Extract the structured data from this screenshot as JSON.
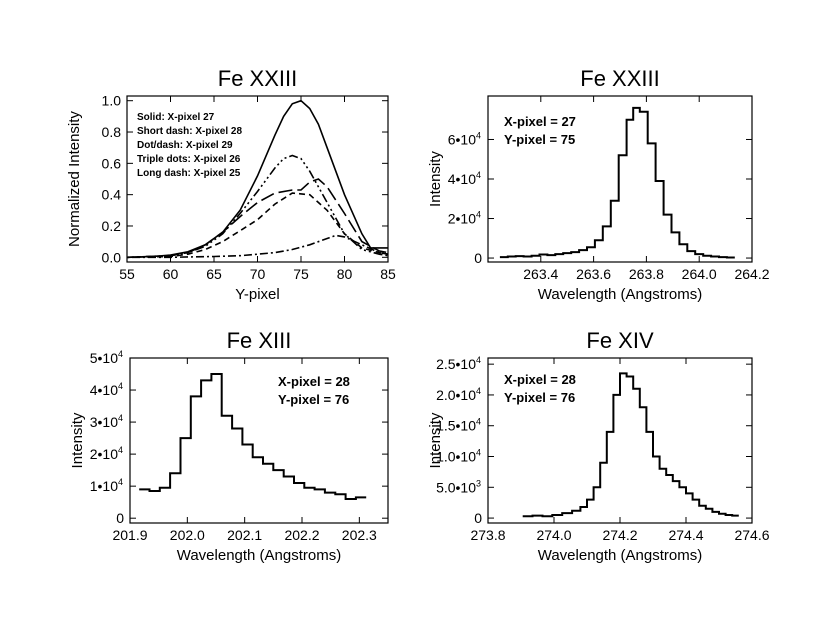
{
  "chart_data": [
    {
      "type": "line",
      "title": "Fe XXIII",
      "xlabel": "Y-pixel",
      "ylabel": "Normalized Intensity",
      "xlim": [
        55,
        85
      ],
      "ylim": [
        -0.03,
        1.03
      ],
      "xticks": [
        55,
        60,
        65,
        70,
        75,
        80,
        85
      ],
      "xtick_labels": [
        "55",
        "60",
        "65",
        "70",
        "75",
        "80",
        "85"
      ],
      "yticks": [
        0.0,
        0.2,
        0.4,
        0.6,
        0.8,
        1.0
      ],
      "ytick_labels": [
        "0.0",
        "0.2",
        "0.4",
        "0.6",
        "0.8",
        "1.0"
      ],
      "legend_lines": [
        "Solid: X-pixel 27",
        "Short dash: X-pixel 28",
        "Dot/dash: X-pixel 29",
        "Triple dots: X-pixel 26",
        "Long dash: X-pixel 25"
      ],
      "series": [
        {
          "name": "Solid: X-pixel 27",
          "dash": "solid",
          "x": [
            55,
            58,
            60,
            62,
            64,
            66,
            68,
            70,
            72,
            73,
            74,
            75,
            76,
            77,
            78,
            80,
            82,
            83,
            84,
            85
          ],
          "y": [
            0.0,
            0.005,
            0.015,
            0.035,
            0.08,
            0.16,
            0.3,
            0.52,
            0.78,
            0.9,
            0.98,
            1.0,
            0.95,
            0.85,
            0.7,
            0.4,
            0.15,
            0.06,
            0.06,
            0.06
          ]
        },
        {
          "name": "Short dash: X-pixel 28",
          "dash": "short",
          "x": [
            55,
            60,
            62,
            64,
            66,
            68,
            70,
            72,
            74,
            76,
            78,
            80,
            82,
            84,
            85
          ],
          "y": [
            0.0,
            0.005,
            0.02,
            0.05,
            0.1,
            0.17,
            0.24,
            0.34,
            0.41,
            0.4,
            0.3,
            0.15,
            0.06,
            0.03,
            0.02
          ]
        },
        {
          "name": "Dot/dash: X-pixel 29",
          "dash": "dotdash",
          "x": [
            55,
            60,
            65,
            68,
            70,
            72,
            74,
            76,
            78,
            79,
            80,
            82,
            84,
            85
          ],
          "y": [
            0.0,
            0.0,
            0.005,
            0.01,
            0.02,
            0.03,
            0.05,
            0.08,
            0.12,
            0.14,
            0.13,
            0.08,
            0.03,
            0.02
          ]
        },
        {
          "name": "Triple dots: X-pixel 26",
          "dash": "tripledot",
          "x": [
            55,
            60,
            62,
            64,
            66,
            68,
            70,
            72,
            73,
            74,
            75,
            76,
            78,
            80,
            82,
            84,
            85
          ],
          "y": [
            0.0,
            0.01,
            0.03,
            0.07,
            0.15,
            0.28,
            0.42,
            0.57,
            0.63,
            0.65,
            0.63,
            0.55,
            0.35,
            0.15,
            0.05,
            0.02,
            0.01
          ]
        },
        {
          "name": "Long dash: X-pixel 25",
          "dash": "long",
          "x": [
            55,
            60,
            62,
            64,
            66,
            68,
            70,
            72,
            74,
            75,
            76,
            77,
            78,
            80,
            82,
            84,
            85
          ],
          "y": [
            0.0,
            0.01,
            0.03,
            0.08,
            0.16,
            0.26,
            0.35,
            0.41,
            0.43,
            0.43,
            0.48,
            0.5,
            0.45,
            0.28,
            0.1,
            0.04,
            0.03
          ]
        }
      ]
    },
    {
      "type": "line",
      "step": true,
      "title": "Fe XXIII",
      "xlabel": "Wavelength (Angstroms)",
      "ylabel": "Intensity",
      "xlim": [
        263.2,
        264.2
      ],
      "ylim": [
        -2000,
        82000
      ],
      "xticks": [
        263.4,
        263.6,
        263.8,
        264.0,
        264.2
      ],
      "xtick_labels": [
        "263.4",
        "263.6",
        "263.8",
        "264.0",
        "264.2"
      ],
      "yticks": [
        0,
        20000,
        40000,
        60000
      ],
      "ytick_labels": [
        "0",
        "2•10",
        "4•10",
        "6•10"
      ],
      "ytick_exp": [
        "",
        "4",
        "4",
        "4"
      ],
      "annotations": [
        "X-pixel = 27",
        "Y-pixel = 75"
      ],
      "x": [
        263.26,
        263.29,
        263.32,
        263.35,
        263.38,
        263.41,
        263.44,
        263.47,
        263.5,
        263.53,
        263.56,
        263.59,
        263.62,
        263.65,
        263.68,
        263.71,
        263.74,
        263.76,
        263.79,
        263.82,
        263.85,
        263.88,
        263.91,
        263.94,
        263.97,
        264.0,
        264.03,
        264.06,
        264.09,
        264.12
      ],
      "values": [
        500,
        800,
        1000,
        800,
        1200,
        1800,
        1500,
        2000,
        2500,
        3000,
        4000,
        5500,
        9000,
        16000,
        29000,
        52000,
        70000,
        76000,
        74000,
        58000,
        39000,
        22000,
        13000,
        7000,
        3500,
        2000,
        1200,
        800,
        500,
        300
      ]
    },
    {
      "type": "line",
      "step": true,
      "title": "Fe XIII",
      "xlabel": "Wavelength (Angstroms)",
      "ylabel": "Intensity",
      "xlim": [
        201.9,
        202.35
      ],
      "ylim": [
        -1500,
        50000
      ],
      "xticks": [
        201.9,
        202.0,
        202.1,
        202.2,
        202.3
      ],
      "xtick_labels": [
        "201.9",
        "202.0",
        "202.1",
        "202.2",
        "202.3"
      ],
      "yticks": [
        0,
        10000,
        20000,
        30000,
        40000,
        50000
      ],
      "ytick_labels": [
        "0",
        "1•10",
        "2•10",
        "3•10",
        "4•10",
        "5•10"
      ],
      "ytick_exp": [
        "",
        "4",
        "4",
        "4",
        "4",
        "4"
      ],
      "annotations": [
        "X-pixel = 28",
        "Y-pixel = 76"
      ],
      "x": [
        201.925,
        201.943,
        201.961,
        201.979,
        201.997,
        202.015,
        202.033,
        202.051,
        202.069,
        202.087,
        202.105,
        202.123,
        202.141,
        202.159,
        202.177,
        202.195,
        202.213,
        202.231,
        202.249,
        202.267,
        202.285,
        202.303
      ],
      "values": [
        9000,
        8500,
        9500,
        14000,
        25000,
        38000,
        43000,
        45000,
        32000,
        28000,
        23000,
        19000,
        17000,
        15000,
        13000,
        11000,
        9500,
        9000,
        8000,
        7500,
        6000,
        6500
      ]
    },
    {
      "type": "line",
      "step": true,
      "title": "Fe XIV",
      "xlabel": "Wavelength (Angstroms)",
      "ylabel": "Intensity",
      "xlim": [
        273.8,
        274.6
      ],
      "ylim": [
        -800,
        26000
      ],
      "xticks": [
        273.8,
        274.0,
        274.2,
        274.4,
        274.6
      ],
      "xtick_labels": [
        "273.8",
        "274.0",
        "274.2",
        "274.4",
        "274.6"
      ],
      "yticks": [
        0,
        5000,
        10000,
        15000,
        20000,
        25000
      ],
      "ytick_labels": [
        "0",
        "5.0•10",
        "1.0•10",
        "1.5•10",
        "2.0•10",
        "2.5•10"
      ],
      "ytick_exp": [
        "",
        "3",
        "4",
        "4",
        "4",
        "4"
      ],
      "annotations": [
        "X-pixel = 28",
        "Y-pixel = 76"
      ],
      "x": [
        273.92,
        273.95,
        273.98,
        274.01,
        274.04,
        274.07,
        274.09,
        274.11,
        274.13,
        274.15,
        274.17,
        274.19,
        274.21,
        274.23,
        274.25,
        274.27,
        274.29,
        274.31,
        274.33,
        274.35,
        274.37,
        274.39,
        274.41,
        274.43,
        274.45,
        274.47,
        274.49,
        274.51,
        274.53,
        274.55
      ],
      "values": [
        300,
        400,
        300,
        500,
        800,
        1200,
        1800,
        3000,
        5000,
        9000,
        14000,
        20000,
        23500,
        23000,
        21000,
        18000,
        14000,
        10000,
        8000,
        7000,
        6000,
        5000,
        4000,
        3000,
        2000,
        1500,
        1000,
        700,
        500,
        400
      ]
    }
  ]
}
